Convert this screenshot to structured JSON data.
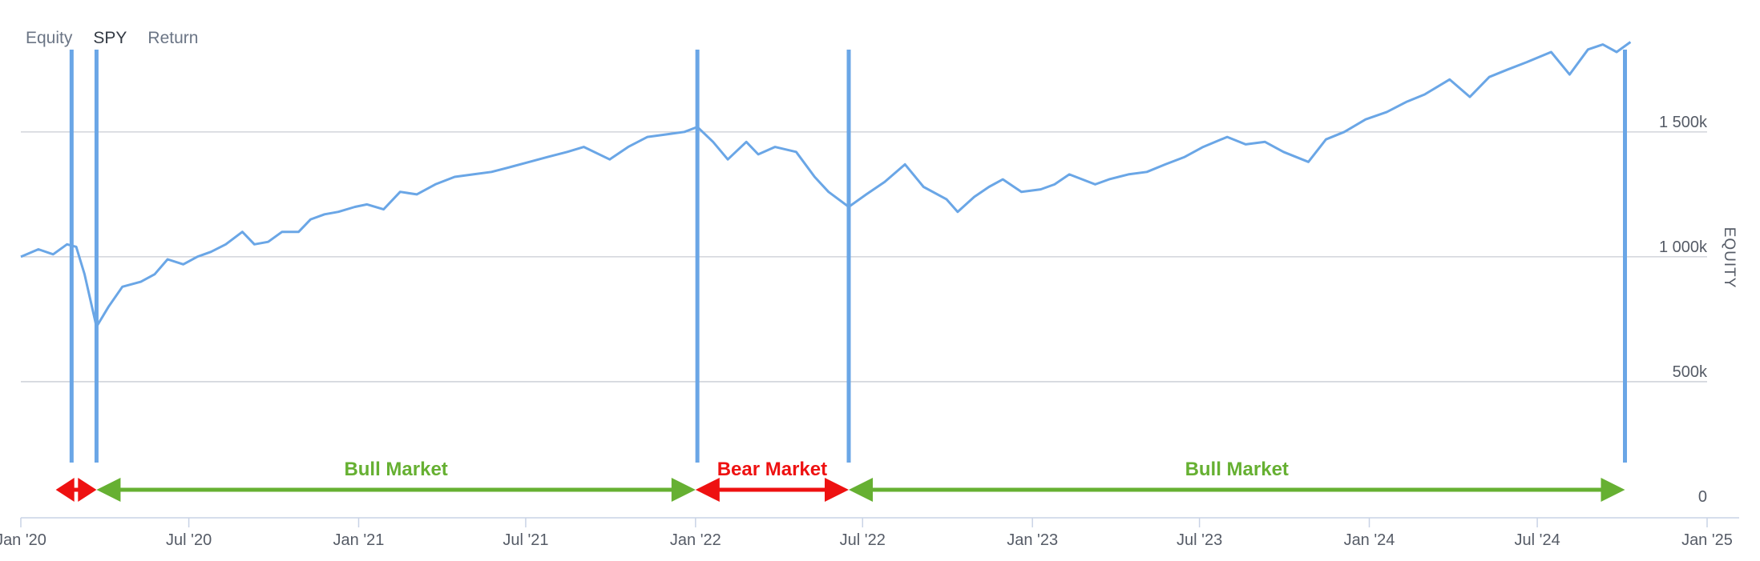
{
  "tabs": [
    {
      "label": "Equity",
      "active": false
    },
    {
      "label": "SPY",
      "active": true
    },
    {
      "label": "Return",
      "active": false
    }
  ],
  "colors": {
    "line": "#6aa6e6",
    "marker": "#6aa6e6",
    "grid": "#c8ccd4",
    "axis": "#c9d3e6",
    "bull": "#66b032",
    "bear": "#ee1111",
    "tab_active": "#333a44",
    "tab_inactive": "#6b7585"
  },
  "chart_data": {
    "type": "line",
    "title": "",
    "xlabel": "",
    "ylabel": "EQUITY",
    "x_ticks": [
      "Jan '20",
      "Jul '20",
      "Jan '21",
      "Jul '21",
      "Jan '22",
      "Jul '22",
      "Jan '23",
      "Jul '23",
      "Jan '24",
      "Jul '24",
      "Jan '25"
    ],
    "y_ticks": [
      "0",
      "500k",
      "1 000k",
      "1 500k"
    ],
    "ylim": [
      0,
      1900000
    ],
    "xlim": [
      "2020-01-01",
      "2025-01-01"
    ],
    "grid": true,
    "series": [
      {
        "x": [
          "2020-01-01",
          "2020-01-20",
          "2020-02-05",
          "2020-02-20",
          "2020-03-01",
          "2020-03-10",
          "2020-03-23",
          "2020-04-05",
          "2020-04-20",
          "2020-05-10",
          "2020-05-25",
          "2020-06-08",
          "2020-06-25",
          "2020-07-10",
          "2020-07-25",
          "2020-08-10",
          "2020-08-28",
          "2020-09-10",
          "2020-09-25",
          "2020-10-10",
          "2020-10-28",
          "2020-11-10",
          "2020-11-25",
          "2020-12-10",
          "2020-12-28",
          "2021-01-10",
          "2021-01-28",
          "2021-02-15",
          "2021-03-05",
          "2021-03-25",
          "2021-04-15",
          "2021-05-05",
          "2021-05-25",
          "2021-06-15",
          "2021-07-05",
          "2021-07-25",
          "2021-08-15",
          "2021-09-02",
          "2021-09-30",
          "2021-10-20",
          "2021-11-10",
          "2021-11-30",
          "2021-12-20",
          "2022-01-03",
          "2022-01-20",
          "2022-02-05",
          "2022-02-25",
          "2022-03-10",
          "2022-03-28",
          "2022-04-20",
          "2022-05-10",
          "2022-05-25",
          "2022-06-16",
          "2022-07-05",
          "2022-07-25",
          "2022-08-16",
          "2022-09-05",
          "2022-09-30",
          "2022-10-12",
          "2022-10-30",
          "2022-11-15",
          "2022-11-30",
          "2022-12-20",
          "2023-01-10",
          "2023-01-25",
          "2023-02-10",
          "2023-03-10",
          "2023-03-25",
          "2023-04-15",
          "2023-05-05",
          "2023-05-25",
          "2023-06-15",
          "2023-07-05",
          "2023-07-31",
          "2023-08-20",
          "2023-09-10",
          "2023-09-30",
          "2023-10-27",
          "2023-11-15",
          "2023-12-05",
          "2023-12-28",
          "2024-01-20",
          "2024-02-10",
          "2024-03-01",
          "2024-03-28",
          "2024-04-19",
          "2024-05-10",
          "2024-05-30",
          "2024-06-20",
          "2024-07-16",
          "2024-08-05",
          "2024-08-25",
          "2024-09-10",
          "2024-09-25",
          "2024-10-10"
        ],
        "values": [
          1000000,
          1030000,
          1010000,
          1050000,
          1040000,
          930000,
          720000,
          800000,
          880000,
          900000,
          930000,
          990000,
          970000,
          1000000,
          1020000,
          1050000,
          1100000,
          1050000,
          1060000,
          1100000,
          1100000,
          1150000,
          1170000,
          1180000,
          1200000,
          1210000,
          1190000,
          1260000,
          1250000,
          1290000,
          1320000,
          1330000,
          1340000,
          1360000,
          1380000,
          1400000,
          1420000,
          1440000,
          1390000,
          1440000,
          1480000,
          1490000,
          1500000,
          1520000,
          1460000,
          1390000,
          1460000,
          1410000,
          1440000,
          1420000,
          1320000,
          1260000,
          1200000,
          1250000,
          1300000,
          1370000,
          1280000,
          1230000,
          1180000,
          1240000,
          1280000,
          1310000,
          1260000,
          1270000,
          1290000,
          1330000,
          1290000,
          1310000,
          1330000,
          1340000,
          1370000,
          1400000,
          1440000,
          1480000,
          1450000,
          1460000,
          1420000,
          1380000,
          1470000,
          1500000,
          1550000,
          1580000,
          1620000,
          1650000,
          1710000,
          1640000,
          1720000,
          1750000,
          1780000,
          1820000,
          1730000,
          1830000,
          1850000,
          1820000,
          1860000
        ]
      }
    ],
    "markers": [
      "2020-02-25",
      "2020-03-23",
      "2022-01-03",
      "2022-06-16",
      "2024-10-04"
    ],
    "annotations": [
      {
        "label": "",
        "type": "bear",
        "from": "2020-02-20",
        "to": "2020-03-23"
      },
      {
        "label": "Bull Market",
        "type": "bull",
        "from": "2020-03-23",
        "to": "2022-01-01"
      },
      {
        "label": "Bear Market",
        "type": "bear",
        "from": "2022-01-01",
        "to": "2022-06-16"
      },
      {
        "label": "Bull Market",
        "type": "bull",
        "from": "2022-06-16",
        "to": "2024-10-04"
      }
    ]
  }
}
